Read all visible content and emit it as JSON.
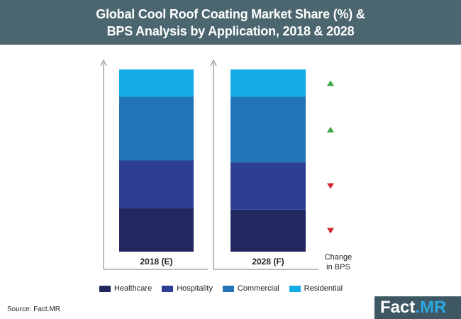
{
  "header": {
    "title_line1": "Global Cool Roof Coating Market Share (%) &",
    "title_line2": "BPS Analysis by Application, 2018 & 2028"
  },
  "chart_data": {
    "type": "bar",
    "stacked": true,
    "categories": [
      "2018 (E)",
      "2028 (F)"
    ],
    "series": [
      {
        "name": "Healthcare",
        "color": "#222760",
        "values": [
          24,
          23
        ]
      },
      {
        "name": "Hospitality",
        "color": "#2e3f93",
        "values": [
          26,
          26
        ]
      },
      {
        "name": "Commercial",
        "color": "#2174b8",
        "values": [
          35,
          36
        ]
      },
      {
        "name": "Residential",
        "color": "#13aae8",
        "values": [
          15,
          15
        ]
      }
    ],
    "bps_changes": [
      {
        "series": "Residential",
        "direction": "up",
        "color": "#3daa48"
      },
      {
        "series": "Commercial",
        "direction": "up",
        "color": "#3daa48"
      },
      {
        "series": "Hospitality",
        "direction": "down",
        "color": "#d0282e"
      },
      {
        "series": "Healthcare",
        "direction": "down",
        "color": "#d0282e"
      }
    ],
    "change_label_line1": "Change",
    "change_label_line2": "in BPS",
    "ylim": [
      0,
      100
    ],
    "legend_position": "bottom"
  },
  "footer": {
    "source": "Source: Fact.MR",
    "logo_main": "Fact",
    "logo_accent": ".MR"
  }
}
